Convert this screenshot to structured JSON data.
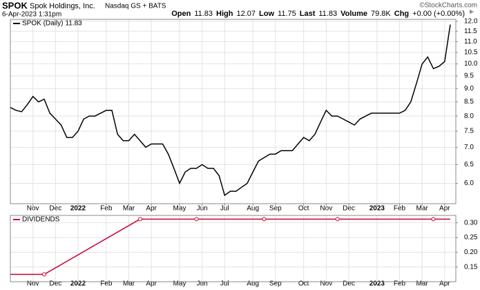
{
  "header": {
    "symbol": "SPOK",
    "company": "Spok Holdings, Inc.",
    "exchange": "Nasdaq GS + BATS",
    "copyright": "©StockCharts.com",
    "date": "6-Apr-2023 1:31pm",
    "quote": [
      {
        "label": "Open",
        "value": "11.83"
      },
      {
        "label": "High",
        "value": "12.07"
      },
      {
        "label": "Low",
        "value": "11.75"
      },
      {
        "label": "Last",
        "value": "11.83"
      },
      {
        "label": "Volume",
        "value": "79.8K"
      },
      {
        "label": "Chg",
        "value": "+0.00 (+0.00%)"
      }
    ]
  },
  "chart_data": [
    {
      "type": "line",
      "log_scale": true,
      "grid": true,
      "categories": [
        null,
        null,
        null,
        null,
        "Nov",
        null,
        null,
        null,
        "Dec",
        null,
        null,
        null,
        "2022",
        null,
        null,
        null,
        null,
        "Feb",
        null,
        null,
        null,
        "Mar",
        null,
        null,
        null,
        "Apr",
        null,
        null,
        null,
        null,
        "May",
        null,
        null,
        null,
        "Jun",
        null,
        null,
        null,
        "Jul",
        null,
        null,
        null,
        null,
        "Aug",
        null,
        null,
        null,
        "Sep",
        null,
        null,
        null,
        null,
        "Oct",
        null,
        null,
        null,
        "Nov",
        null,
        null,
        null,
        "Dec",
        null,
        null,
        null,
        null,
        "2023",
        null,
        null,
        null,
        "Feb",
        null,
        null,
        null,
        "Mar",
        null,
        null,
        null,
        "Apr",
        null
      ],
      "series": [
        {
          "name": "SPOK (Daily)",
          "color": "#000000",
          "values": [
            8.3,
            8.2,
            8.15,
            8.4,
            8.7,
            8.5,
            8.6,
            8.1,
            7.9,
            7.7,
            7.3,
            7.3,
            7.5,
            7.9,
            8.0,
            8.0,
            8.1,
            8.2,
            8.2,
            7.4,
            7.2,
            7.2,
            7.4,
            7.2,
            7.0,
            7.1,
            7.1,
            7.1,
            6.8,
            6.4,
            6.0,
            6.3,
            6.4,
            6.4,
            6.5,
            6.4,
            6.4,
            6.2,
            5.7,
            5.8,
            5.8,
            5.9,
            6.0,
            6.3,
            6.6,
            6.7,
            6.8,
            6.8,
            6.9,
            6.9,
            6.9,
            7.1,
            7.3,
            7.2,
            7.4,
            7.8,
            8.2,
            8.0,
            8.0,
            7.9,
            7.8,
            7.7,
            7.9,
            8.0,
            8.1,
            8.1,
            8.1,
            8.1,
            8.1,
            8.1,
            8.2,
            8.5,
            9.2,
            10.0,
            10.3,
            9.8,
            9.9,
            10.1,
            11.83
          ]
        }
      ],
      "ylim": [
        5.5,
        12.1
      ],
      "yticks": [
        {
          "value": 6,
          "label": "6.0"
        },
        6.5,
        {
          "value": 7,
          "label": "7.0"
        },
        7.5,
        {
          "value": 8,
          "label": "8.0"
        },
        8.5,
        {
          "value": 9,
          "label": "9.0"
        },
        9.5,
        {
          "value": 10,
          "label": "10.0"
        },
        10.5,
        {
          "value": 11,
          "label": "11.0"
        },
        11.5,
        {
          "value": 12,
          "label": "12.0"
        }
      ]
    },
    {
      "type": "line",
      "grid": true,
      "markers": true,
      "categories": [
        null,
        null,
        null,
        null,
        "Nov",
        null,
        null,
        null,
        "Dec",
        null,
        null,
        null,
        "2022",
        null,
        null,
        null,
        null,
        "Feb",
        null,
        null,
        null,
        "Mar",
        null,
        null,
        null,
        "Apr",
        null,
        null,
        null,
        null,
        "May",
        null,
        null,
        null,
        "Jun",
        null,
        null,
        null,
        "Jul",
        null,
        null,
        null,
        null,
        "Aug",
        null,
        null,
        null,
        "Sep",
        null,
        null,
        null,
        null,
        "Oct",
        null,
        null,
        null,
        "Nov",
        null,
        null,
        null,
        "Dec",
        null,
        null,
        null,
        null,
        "2023",
        null,
        null,
        null,
        "Feb",
        null,
        null,
        null,
        "Mar",
        null,
        null,
        null,
        "Apr",
        null
      ],
      "series": [
        {
          "name": "DIVIDENDS",
          "color": "#cc0033",
          "values": [
            0.125,
            null,
            null,
            null,
            null,
            null,
            0.125,
            null,
            null,
            null,
            null,
            null,
            null,
            null,
            null,
            null,
            null,
            null,
            null,
            null,
            null,
            null,
            null,
            0.3125,
            null,
            null,
            null,
            null,
            null,
            null,
            null,
            null,
            null,
            0.3125,
            null,
            null,
            null,
            null,
            null,
            null,
            null,
            null,
            null,
            null,
            null,
            0.3125,
            null,
            null,
            null,
            null,
            null,
            null,
            null,
            null,
            null,
            null,
            null,
            null,
            0.3125,
            null,
            null,
            null,
            null,
            null,
            null,
            null,
            null,
            null,
            null,
            null,
            null,
            null,
            null,
            null,
            null,
            0.3125,
            null,
            null,
            0.3125
          ]
        }
      ],
      "ylim": [
        0.1,
        0.325
      ],
      "yticks": [
        {
          "value": 0.15,
          "label": "0.15"
        },
        {
          "value": 0.2,
          "label": "0.20"
        },
        {
          "value": 0.25,
          "label": "0.25"
        },
        {
          "value": 0.3,
          "label": "0.30"
        }
      ]
    }
  ]
}
